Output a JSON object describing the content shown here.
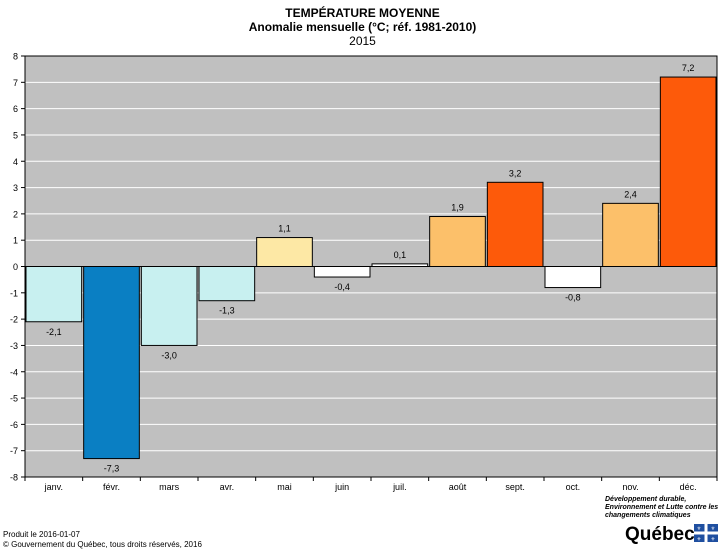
{
  "chart_data": {
    "type": "bar",
    "title": "TEMPÉRATURE MOYENNE",
    "subtitle": "Anomalie mensuelle (°C; réf. 1981-2010)",
    "year": "2015",
    "categories": [
      "janv.",
      "févr.",
      "mars",
      "avr.",
      "mai",
      "juin",
      "juil.",
      "août",
      "sept.",
      "oct.",
      "nov.",
      "déc."
    ],
    "values": [
      -2.1,
      -7.3,
      -3.0,
      -1.3,
      1.1,
      -0.4,
      0.1,
      1.9,
      3.2,
      -0.8,
      2.4,
      7.2
    ],
    "value_labels": [
      "-2,1",
      "-7,3",
      "-3,0",
      "-1,3",
      "1,1",
      "-0,4",
      "0,1",
      "1,9",
      "3,2",
      "-0,8",
      "2,4",
      "7,2"
    ],
    "colors": [
      "#c8f0f0",
      "#0a7fc3",
      "#c8f0f0",
      "#c8f0f0",
      "#fde8a5",
      "#ffffff",
      "#ffffff",
      "#fcc06a",
      "#fd5a0a",
      "#ffffff",
      "#fcc06a",
      "#fd5a0a"
    ],
    "ylim": [
      -8,
      8
    ],
    "yticks": [
      8,
      7,
      6,
      5,
      4,
      3,
      2,
      1,
      0,
      -1,
      -2,
      -3,
      -4,
      -5,
      -6,
      -7,
      -8
    ],
    "grid": true,
    "plot_background": "#c0c0c0"
  },
  "footer": {
    "produced": "Produit le 2016-01-07",
    "copyright": "© Gouvernement du Québec, tous droits réservés, 2016"
  },
  "logo": {
    "ministry": "Développement durable, Environnement et Lutte contre les changements climatiques",
    "wordmark": "Québec"
  }
}
